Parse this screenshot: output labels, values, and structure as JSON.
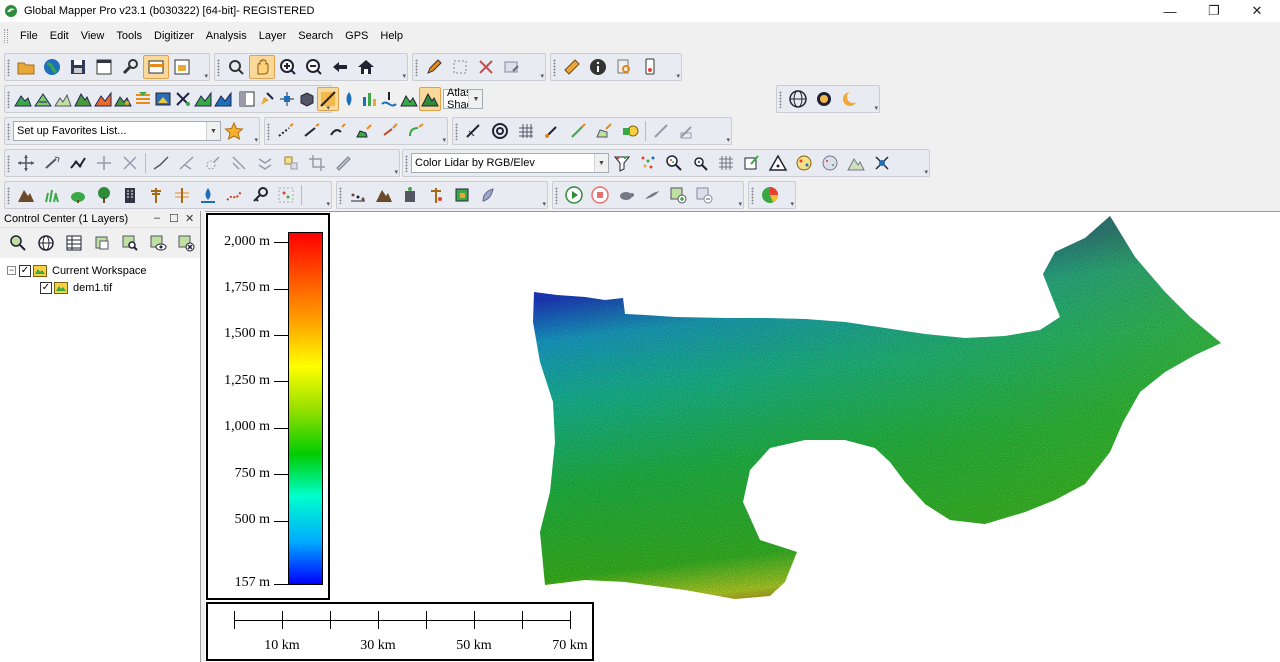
{
  "window": {
    "title": "Global Mapper Pro v23.1 (b030322) [64-bit]- REGISTERED",
    "minimize": "—",
    "restore": "❐",
    "close": "✕"
  },
  "menu": [
    "File",
    "Edit",
    "View",
    "Tools",
    "Digitizer",
    "Analysis",
    "Layer",
    "Search",
    "GPS",
    "Help"
  ],
  "toolbars": {
    "shader_combo": "Atlas Shader",
    "favorites_combo": "Set up Favorites List...",
    "lidar_combo": "Color Lidar by RGB/Elev"
  },
  "control_center": {
    "title": "Control Center (1 Layers)",
    "minimize": "–",
    "float": "☐",
    "close": "✕",
    "tree": {
      "workspace": "Current Workspace",
      "layer": "dem1.tif",
      "workspace_expander": "−",
      "check": "✓"
    }
  },
  "legend": {
    "labels": [
      "2,000 m",
      "1,750 m",
      "1,500 m",
      "1,250 m",
      "1,000 m",
      "750 m",
      "500 m",
      "157 m"
    ],
    "gradient_colors": [
      "#ff0000",
      "#ff5500",
      "#ffa000",
      "#ffff00",
      "#99e000",
      "#00cc00",
      "#00ffcc",
      "#00aaff",
      "#0000ff"
    ]
  },
  "scale_bar": {
    "labels": [
      "10 km",
      "30 km",
      "50 km",
      "70 km"
    ]
  }
}
